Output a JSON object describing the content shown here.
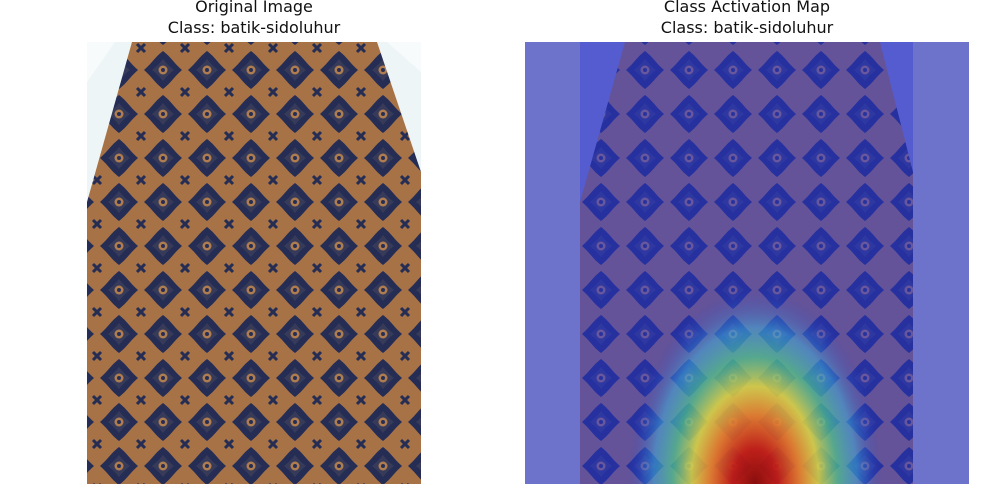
{
  "figure": {
    "left_panel": {
      "title_line1": "Original Image",
      "title_line2": "Class: batik-sidoluhur",
      "image_description_icon": "batik-fabric-image"
    },
    "right_panel": {
      "title_line1": "Class Activation Map",
      "title_line2": "Class: batik-sidoluhur",
      "image_description_icon": "heatmap-overlay-image"
    }
  },
  "colors": {
    "fabric_brown": "#b07a4a",
    "fabric_navy": "#27305a",
    "overlay_blue": "#5d63c8",
    "heat_red": "#b0140c",
    "heat_yellow": "#e8e23a",
    "heat_green": "#4fcb8a",
    "heat_cyan": "#3fb8e0"
  }
}
